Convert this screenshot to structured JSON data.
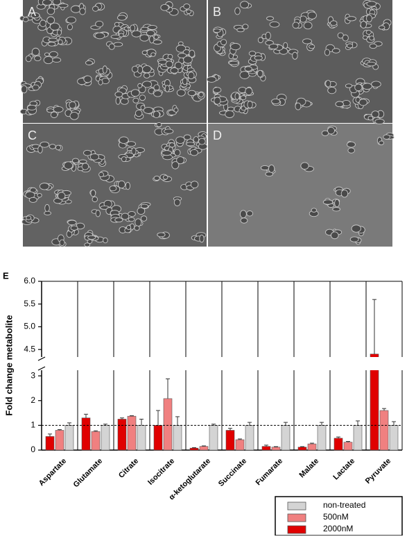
{
  "panels": {
    "labels": [
      "A",
      "B",
      "C",
      "D"
    ]
  },
  "chart_data": {
    "type": "bar",
    "panel_label": "E",
    "ylabel": "Fold change metabolite",
    "categories": [
      "Aspartate",
      "Glutamate",
      "Citrate",
      "Isocitrate",
      "α-ketoglutarate",
      "Succinate",
      "Fumarate",
      "Malate",
      "Lactate",
      "Pyruvate"
    ],
    "series": [
      {
        "name": "non-treated",
        "color": "#d4d4d4",
        "values": [
          1.0,
          1.0,
          1.0,
          1.0,
          1.0,
          1.0,
          1.0,
          1.0,
          1.0,
          1.0
        ],
        "errors": [
          0.1,
          0.05,
          0.25,
          0.35,
          0.05,
          0.12,
          0.12,
          0.12,
          0.18,
          0.15
        ]
      },
      {
        "name": "500nM",
        "color": "#f08080",
        "values": [
          0.8,
          0.75,
          1.37,
          2.08,
          0.15,
          0.42,
          0.12,
          0.25,
          0.32,
          1.6
        ],
        "errors": [
          0.03,
          0.03,
          0.02,
          0.8,
          0.02,
          0.03,
          0.02,
          0.03,
          0.03,
          0.08
        ]
      },
      {
        "name": "2000nM",
        "color": "#e00000",
        "values": [
          0.55,
          1.3,
          1.25,
          1.0,
          0.08,
          0.8,
          0.15,
          0.12,
          0.48,
          4.4
        ],
        "errors": [
          0.1,
          0.15,
          0.05,
          0.6,
          0.02,
          0.08,
          0.05,
          0.02,
          0.05,
          1.2
        ]
      }
    ],
    "ylim": [
      0,
      6.0
    ],
    "yticks": [
      0,
      1,
      2,
      3,
      4.5,
      {
        "value": 5.0,
        "label": "5.0"
      },
      5.5,
      {
        "value": 6.0,
        "label": "6.0"
      }
    ],
    "y_break": [
      3.2,
      4.35
    ],
    "reference_line": 1,
    "legend": "bottom-right"
  }
}
